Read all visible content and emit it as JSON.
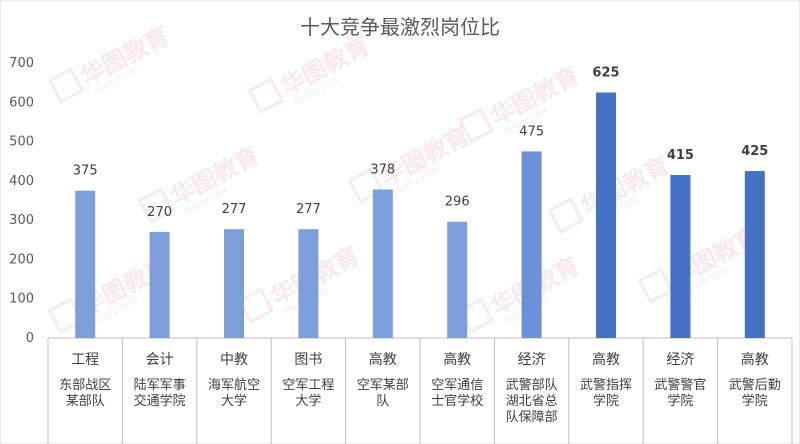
{
  "chart_data": {
    "type": "bar",
    "title": "十大竞争最激烈岗位比",
    "xlabel": "",
    "ylabel": "",
    "ylim": [
      0,
      700
    ],
    "yticks": [
      0,
      100,
      200,
      300,
      400,
      500,
      600,
      700
    ],
    "grid": false,
    "categories": [
      {
        "type": "工程",
        "lines": [
          "东部战区",
          "某部队"
        ]
      },
      {
        "type": "会计",
        "lines": [
          "陆军军事",
          "交通学院"
        ]
      },
      {
        "type": "中教",
        "lines": [
          "海军航空",
          "大学"
        ]
      },
      {
        "type": "图书",
        "lines": [
          "空军工程",
          "大学"
        ]
      },
      {
        "type": "高教",
        "lines": [
          "空军某部",
          "队"
        ]
      },
      {
        "type": "高教",
        "lines": [
          "空军通信",
          "士官学校"
        ]
      },
      {
        "type": "经济",
        "lines": [
          "武警部队",
          "湖北省总",
          "队保障部"
        ]
      },
      {
        "type": "高教",
        "lines": [
          "武警指挥",
          "学院"
        ]
      },
      {
        "type": "经济",
        "lines": [
          "武警警官",
          "学院"
        ]
      },
      {
        "type": "高教",
        "lines": [
          "武警后勤",
          "学院"
        ]
      }
    ],
    "values": [
      375,
      270,
      277,
      277,
      378,
      296,
      475,
      625,
      415,
      425
    ],
    "colors": {
      "light": "#7c9fdc",
      "mid": "#6b91d8",
      "dark": "#4472c4",
      "axis": "#bfbfbf"
    },
    "watermark": {
      "text": "华图教育",
      "sub": "HUATU.COM"
    }
  }
}
